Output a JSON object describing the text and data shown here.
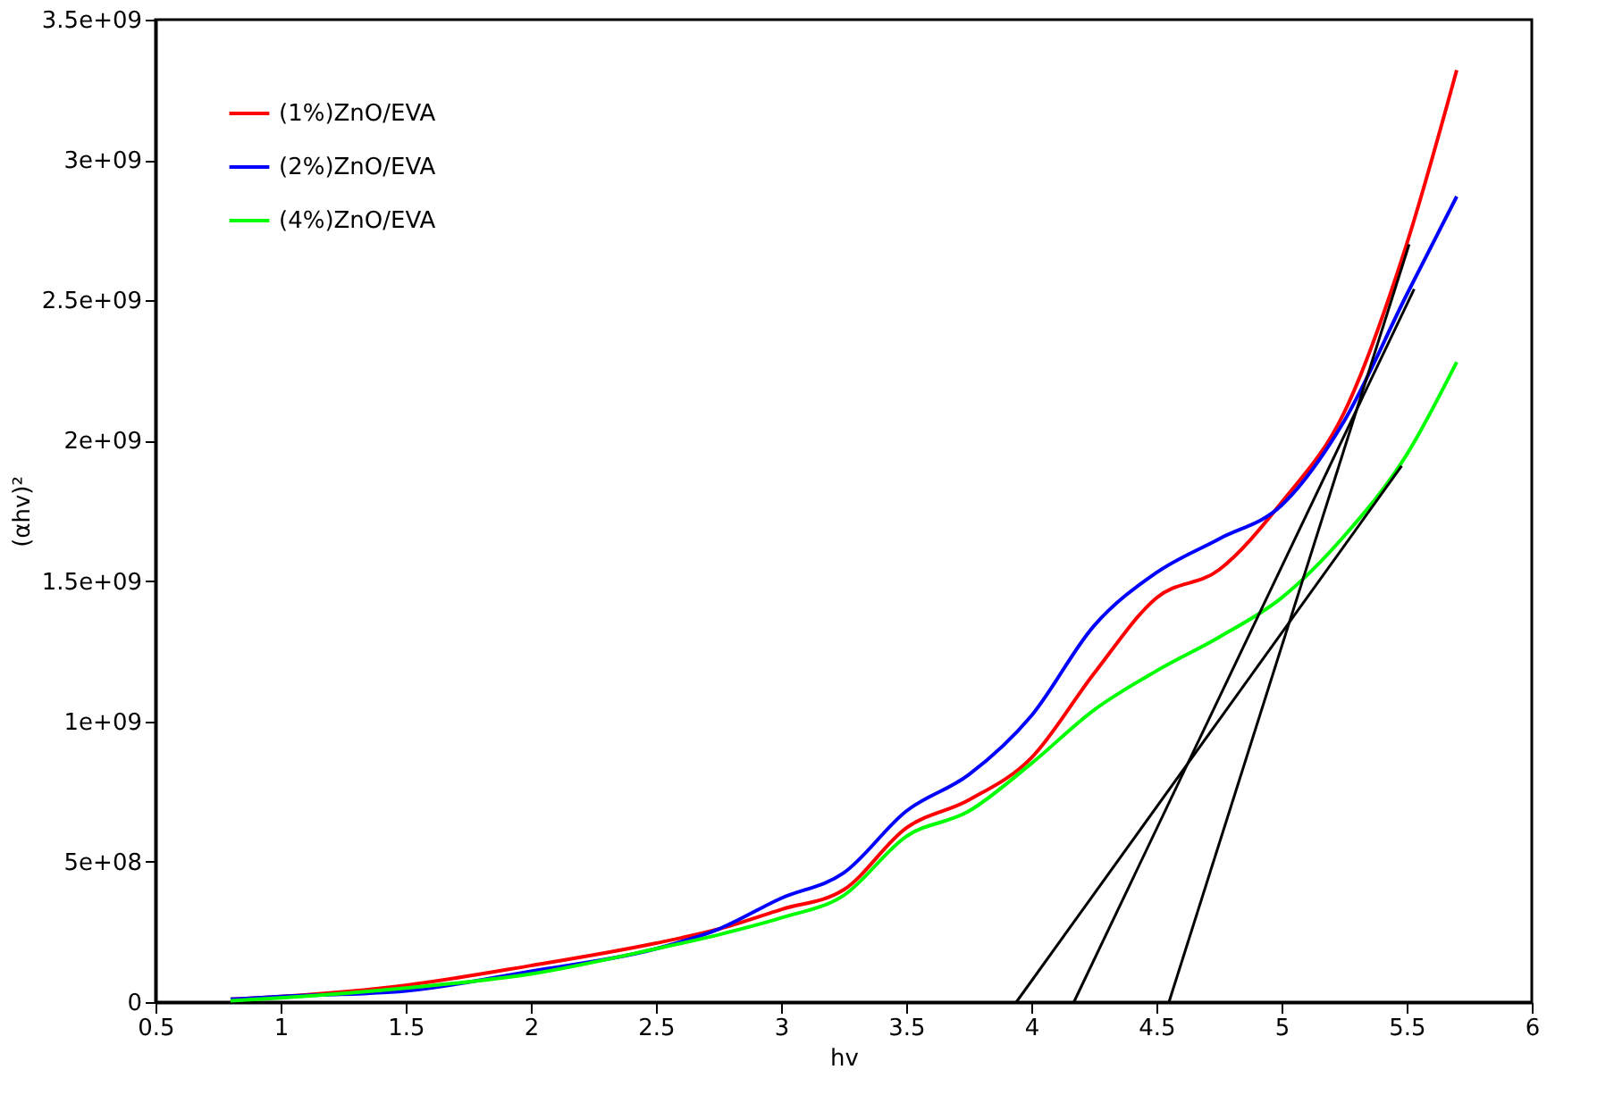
{
  "chart_data": {
    "type": "line",
    "xlabel": "hv",
    "ylabel": "(αhv)²",
    "xlim": [
      0.5,
      6
    ],
    "ylim": [
      0,
      3500000000
    ],
    "xticks": [
      0.5,
      1,
      1.5,
      2,
      2.5,
      3,
      3.5,
      4,
      4.5,
      5,
      5.5,
      6
    ],
    "yticks": [
      0,
      {
        "value": 500000000,
        "label": "5e+08"
      },
      {
        "value": 1000000000,
        "label": "1e+09"
      },
      {
        "value": 1500000000,
        "label": "1.5e+09"
      },
      {
        "value": 2000000000,
        "label": "2e+09"
      },
      {
        "value": 2500000000,
        "label": "2.5e+09"
      },
      {
        "value": 3000000000,
        "label": "3e+09"
      },
      {
        "value": 3500000000,
        "label": "3.5e+09"
      }
    ],
    "grid": false,
    "legend": "top left",
    "series": [
      {
        "name": "(1%)ZnO/EVA",
        "color": "#ff0000",
        "x": [
          0.8,
          1,
          1.5,
          2,
          2.5,
          2.75,
          3,
          3.25,
          3.5,
          3.75,
          4,
          4.25,
          4.5,
          4.75,
          5,
          5.25,
          5.5,
          5.7
        ],
        "values": [
          10000000,
          20000000,
          60000000,
          130000000,
          210000000,
          260000000,
          330000000,
          400000000,
          620000000,
          720000000,
          870000000,
          1170000000,
          1440000000,
          1540000000,
          1780000000,
          2100000000,
          2700000000,
          3320000000
        ]
      },
      {
        "name": "(2%)ZnO/EVA",
        "color": "#0000ff",
        "x": [
          0.8,
          1,
          1.5,
          2,
          2.5,
          2.75,
          3,
          3.25,
          3.5,
          3.75,
          4,
          4.25,
          4.5,
          4.75,
          5,
          5.25,
          5.5,
          5.7
        ],
        "values": [
          10000000,
          20000000,
          40000000,
          110000000,
          190000000,
          260000000,
          370000000,
          460000000,
          680000000,
          810000000,
          1020000000,
          1340000000,
          1530000000,
          1650000000,
          1770000000,
          2070000000,
          2520000000,
          2870000000
        ]
      },
      {
        "name": "(4%)ZnO/EVA",
        "color": "#00ff00",
        "x": [
          0.8,
          1,
          1.5,
          2,
          2.5,
          2.75,
          3,
          3.25,
          3.5,
          3.75,
          4,
          4.25,
          4.5,
          4.75,
          5,
          5.25,
          5.5,
          5.7
        ],
        "values": [
          5000000,
          15000000,
          50000000,
          100000000,
          190000000,
          240000000,
          300000000,
          380000000,
          590000000,
          680000000,
          850000000,
          1040000000,
          1180000000,
          1300000000,
          1440000000,
          1660000000,
          1950000000,
          2280000000
        ]
      },
      {
        "type": "line",
        "color": "#000000",
        "x": [
          3.94,
          5.48
        ],
        "values": [
          0,
          1910000000
        ]
      },
      {
        "type": "line",
        "color": "#000000",
        "x": [
          4.17,
          5.53
        ],
        "values": [
          0,
          2540000000
        ]
      },
      {
        "type": "line",
        "color": "#000000",
        "x": [
          4.55,
          5.51
        ],
        "values": [
          0,
          2700000000
        ]
      }
    ]
  }
}
